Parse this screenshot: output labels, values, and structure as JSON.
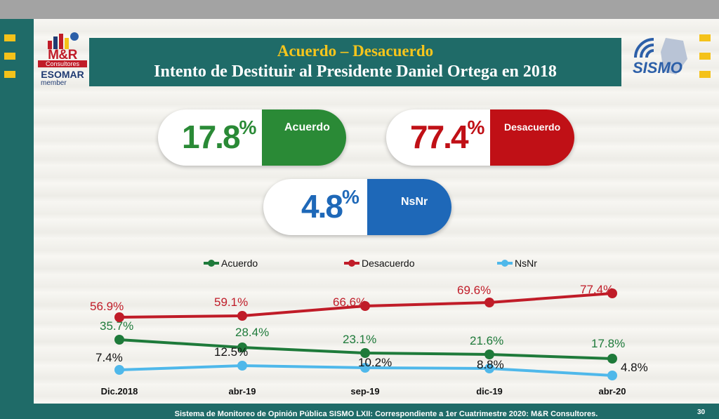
{
  "title": "Acuerdo – Desacuerdo",
  "subtitle": "Intento de Destituir al Presidente Daniel Ortega en 2018",
  "logo_left": {
    "mr": "M&R",
    "consultores": "Consultores",
    "esomar": "ESOMAR",
    "member": "member"
  },
  "logo_right": {
    "text": "SISMO"
  },
  "summary": {
    "acuerdo": {
      "value": "17.8",
      "unit": "%",
      "label": "Acuerdo",
      "color": "#2a8a36"
    },
    "desacuerdo": {
      "value": "77.4",
      "unit": "%",
      "label": "Desacuerdo",
      "color": "#c01016"
    },
    "nsnr": {
      "value": "4.8",
      "unit": "%",
      "label": "NsNr",
      "color": "#1e68b8"
    }
  },
  "chart_data": {
    "type": "line",
    "categories": [
      "Dic.2018",
      "abr-19",
      "sep-19",
      "dic-19",
      "abr-20"
    ],
    "series": [
      {
        "name": "Acuerdo",
        "color": "#1e7a3a",
        "values": [
          35.7,
          28.4,
          23.1,
          21.6,
          17.8
        ],
        "labels": [
          "35.7%",
          "28.4%",
          "23.1%",
          "21.6%",
          "17.8%"
        ]
      },
      {
        "name": "Desacuerdo",
        "color": "#c01c28",
        "values": [
          56.9,
          59.1,
          66.6,
          69.6,
          77.4
        ],
        "labels": [
          "56.9%",
          "59.1%",
          "66.6%",
          "69.6%",
          "77.4%"
        ]
      },
      {
        "name": "NsNr",
        "color": "#4fb8ea",
        "values": [
          7.4,
          12.5,
          10.2,
          8.8,
          4.8
        ],
        "labels": [
          "7.4%",
          "12.5%",
          "10.2%",
          "8.8%",
          "4.8%"
        ]
      }
    ],
    "legend": "top",
    "grid": false
  },
  "footer": "Sistema de Monitoreo de Opinión Pública SISMO LXII: Correspondiente a 1er Cuatrimestre 2020: M&R Consultores.",
  "page_number": "30"
}
